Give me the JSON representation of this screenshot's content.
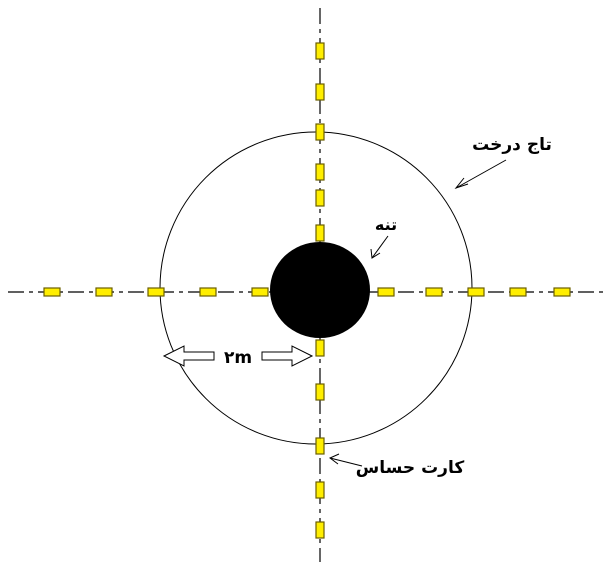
{
  "labels": {
    "crown": "تاج درخت",
    "trunk": "تنه",
    "sensor_card": "کارت حساس",
    "distance": "۲m"
  },
  "colors": {
    "sensor_fill": "#ffee00",
    "sensor_stroke": "#6b5f00",
    "trunk": "#000000",
    "line": "#000000",
    "background": "#ffffff"
  }
}
